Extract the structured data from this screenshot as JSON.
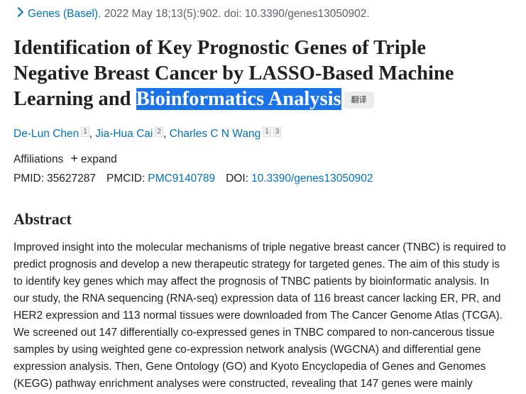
{
  "citation": {
    "journal": "Genes (Basel).",
    "details": "2022 May 18;13(5):902. doi: 10.3390/genes13050902."
  },
  "title": {
    "lines": [
      "Identification of Key Prognostic Genes of Triple",
      "Negative Breast Cancer by LASSO-Based Machine",
      "Learning and"
    ],
    "highlight": "Bioinformatics Analysis",
    "translate_button": "翻译"
  },
  "authors": {
    "separator": ",",
    "list": [
      {
        "name": "De-Lun Chen",
        "affiliations": [
          1
        ]
      },
      {
        "name": "Jia-Hua Cai",
        "affiliations": [
          2
        ]
      },
      {
        "name": "Charles C N Wang",
        "affiliations": [
          1,
          3
        ]
      }
    ]
  },
  "affiliations": {
    "label": "Affiliations",
    "toggle": "expand"
  },
  "identifiers": [
    {
      "label": "PMID:",
      "value": "35627287"
    },
    {
      "label": "PMCID:",
      "value": "PMC9140789"
    },
    {
      "label": "DOI:",
      "value": "10.3390/genes13050902"
    }
  ],
  "abstract": {
    "heading": "Abstract",
    "lines": [
      "Improved insight into the molecular mechanisms of triple negative breast cancer (TNBC) is required to",
      "predict prognosis and develop a new therapeutic strategy for targeted genes. The aim of this study is",
      "to identify key genes which may affect the prognosis of TNBC patients by bioinformatic analysis. In",
      "our study, the RNA sequencing (RNA-seq) expression data of 116 breast cancer lacking ER, PR, and",
      "HER2 expression and 113 normal tissues were downloaded from The Cancer Genome Atlas (TCGA).",
      "We screened out 147 differentially co-expressed genes in TNBC compared to non-cancerous tissue",
      "samples by using weighted gene co-expression network analysis (WGCNA) and differential gene",
      "expression analysis. Then, Gene Ontology (GO) and Kyoto Encyclopedia of Genes and Genomes",
      "(KEGG) pathway enrichment analyses were constructed, revealing that 147 genes were mainly"
    ]
  }
}
